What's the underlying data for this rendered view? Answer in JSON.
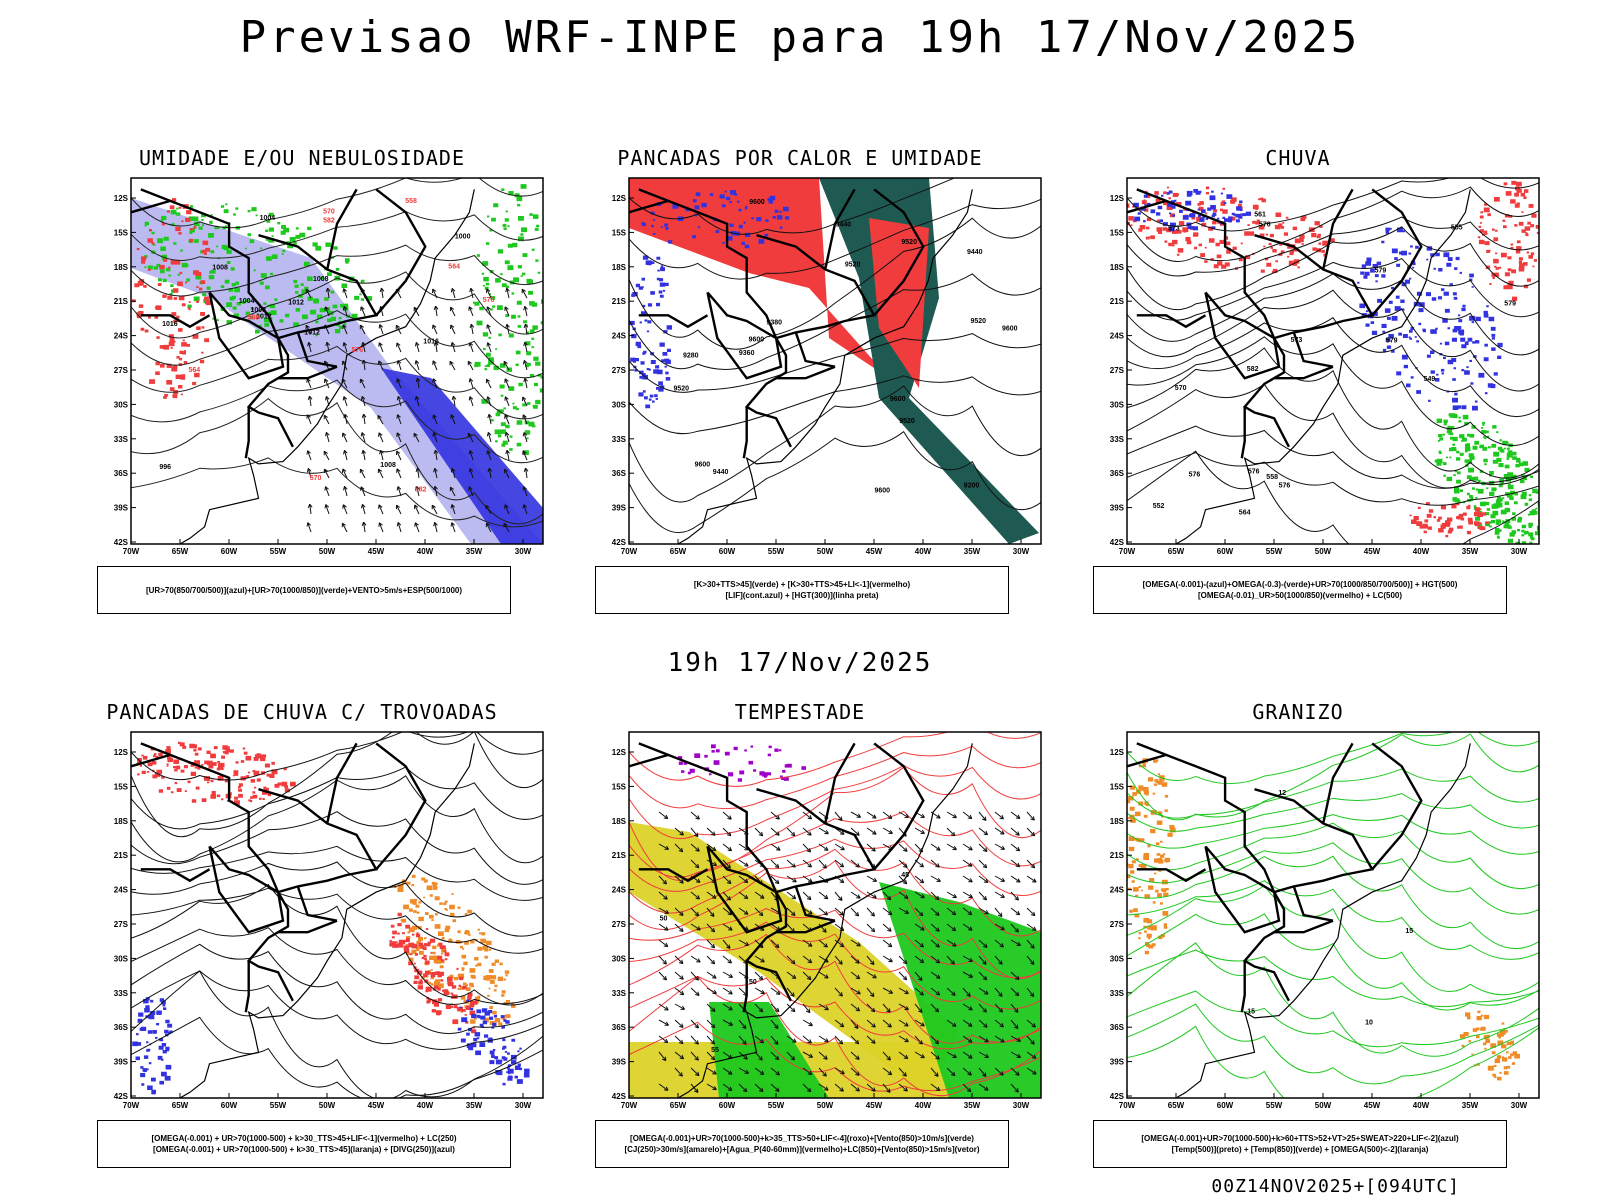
{
  "page_title": "Previsao WRF-INPE  para 19h 17/Nov/2025",
  "middle_title": "19h 17/Nov/2025",
  "footer_run": "00Z14NOV2025+[094UTC]",
  "lat_ticks": [
    "12S",
    "15S",
    "18S",
    "21S",
    "24S",
    "27S",
    "30S",
    "33S",
    "36S",
    "39S",
    "42S"
  ],
  "lon_ticks": [
    "70W",
    "65W",
    "60W",
    "55W",
    "50W",
    "45W",
    "40W",
    "35W",
    "30W"
  ],
  "colors": {
    "light_blue": "#b4b4f0",
    "blue": "#3232e0",
    "red": "#f03c3c",
    "green": "#1ec81e",
    "dark_green": "#1f5a52",
    "orange": "#f08c28",
    "yellow": "#dcd228",
    "purple": "#a000c8"
  },
  "panels": [
    {
      "title": "UMIDADE E/OU NEBULOSIDADE",
      "legend_line1": "[UR>70(850/700/500)](azul)+[UR>70(1000/850)](verde)+VENTO>5m/s+ESP(500/1000)",
      "legend_line2": "",
      "contour_labels": [
        "1008",
        "1012",
        "1016",
        "1008",
        "1012",
        "1008",
        "1004",
        "1000",
        "996",
        "1004",
        "1008",
        "1012",
        "1016",
        "576",
        "570",
        "564",
        "558",
        "582",
        "588",
        "564",
        "570",
        "576",
        "582"
      ]
    },
    {
      "title": "PANCADAS POR CALOR E UMIDADE",
      "legend_line1": "[K>30+TTS>45](verde) + [K>30+TTS>45+LI<-1](vermelho)",
      "legend_line2": "[LIF](cont.azul) + [HGT(300)](linha preta)",
      "contour_labels": [
        "9600",
        "9600",
        "9520",
        "9440",
        "9520",
        "9600",
        "9600",
        "9520",
        "9440",
        "9520",
        "9380",
        "9280",
        "9200",
        "9440",
        "9360",
        "9520",
        "9600",
        "9600"
      ]
    },
    {
      "title": "CHUVA",
      "legend_line1": "[OMEGA(-0.001)-(azul)+OMEGA(-0.3)-(verde)+UR>70(1000/850/700/500)] + HGT(500)",
      "legend_line2": "[OMEGA(-0.01)_UR>50(1000/850)(vermelho) + LC(500)",
      "contour_labels": [
        "582",
        "579",
        "576",
        "576",
        "573",
        "570",
        "564",
        "561",
        "558",
        "555",
        "552",
        "549",
        "579",
        "576",
        "573",
        "576",
        "579"
      ]
    },
    {
      "title": "PANCADAS DE CHUVA C/ TROVOADAS",
      "legend_line1": "[OMEGA(-0.001) + UR>70(1000-500) + k>30_TTS>45+LIF<-1](vermelho) + LC(250)",
      "legend_line2": "[OMEGA(-0.001) + UR>70(1000-500) + k>30_TTS>45](laranja) + [DIVG(250)](azul)",
      "contour_labels": []
    },
    {
      "title": "TEMPESTADE",
      "legend_line1": "[OMEGA(-0.001)+UR>70(1000-500)+k>35_TTS>50+LIF<-4](roxo)+[Vento(850)>10m/s](verde)",
      "legend_line2": "[CJ(250)>30m/s](amarelo)+[Agua_P(40-60mm)](vermelho)+LC(850)+[Vento(850)>15m/s](vetor)",
      "contour_labels": [
        "50",
        "50",
        "45",
        "55"
      ]
    },
    {
      "title": "GRANIZO",
      "legend_line1": "[OMEGA(-0.001)+UR>70(1000-500)+k>60+TTS>52+VT>25+SWEAT>220+LIF<-2](azul)",
      "legend_line2": "[Temp(500)](preto) + [Temp(850)](verde) + [OMEGA(500)<-2](laranja)",
      "contour_labels": [
        "15",
        "15",
        "12",
        "10"
      ]
    }
  ]
}
